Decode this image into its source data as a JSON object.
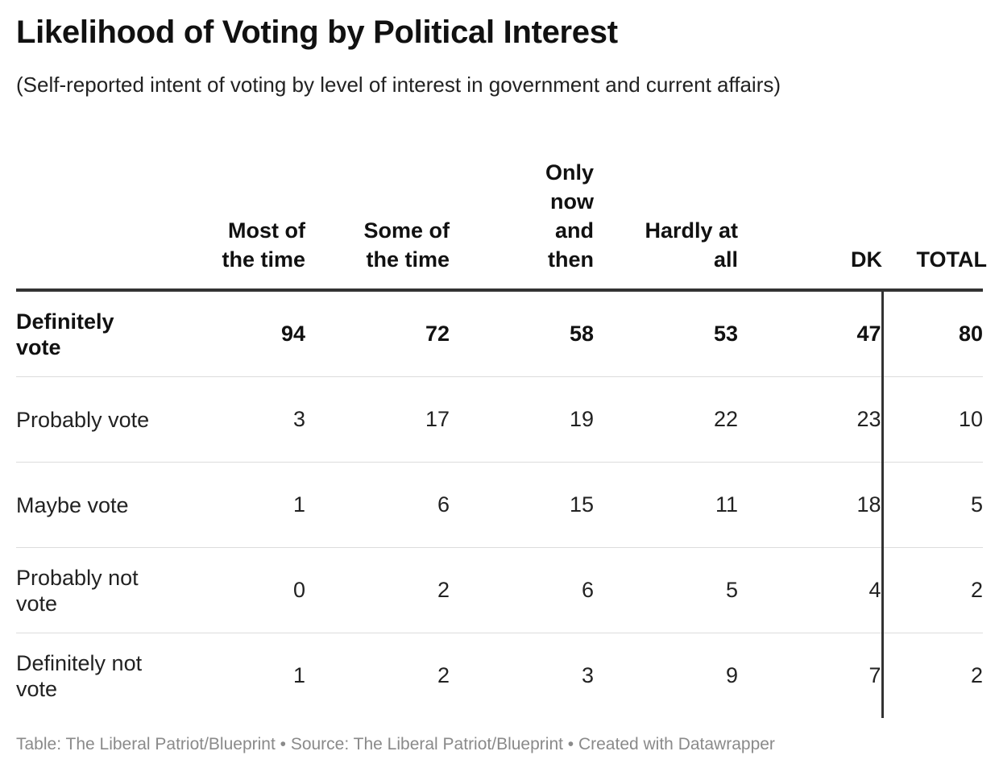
{
  "title": "Likelihood of Voting by Political Interest",
  "subtitle": "(Self-reported intent of voting by level of interest in government and current affairs)",
  "footer": "Table: The Liberal Patriot/Blueprint • Source: The Liberal Patriot/Blueprint • Created with Datawrapper",
  "colors": {
    "header_rule": "#333333",
    "row_divider": "#dcdcdc",
    "footer_text": "#8a8a8a"
  },
  "chart_data": {
    "type": "table",
    "title": "Likelihood of Voting by Political Interest",
    "subtitle": "(Self-reported intent of voting by level of interest in government and current affairs)",
    "columns": [
      "Most of the time",
      "Some of the time",
      "Only now and then",
      "Hardly at all",
      "DK",
      "TOTAL"
    ],
    "rows": [
      {
        "label": "Definitely vote",
        "values": [
          "94",
          "72",
          "58",
          "53",
          "47",
          "80"
        ]
      },
      {
        "label": "Probably vote",
        "values": [
          "3",
          "17",
          "19",
          "22",
          "23",
          "10"
        ]
      },
      {
        "label": "Maybe vote",
        "values": [
          "1",
          "6",
          "15",
          "11",
          "18",
          "5"
        ]
      },
      {
        "label": "Probably not vote",
        "values": [
          "0",
          "2",
          "6",
          "5",
          "4",
          "2"
        ]
      },
      {
        "label": "Definitely not vote",
        "values": [
          "1",
          "2",
          "3",
          "9",
          "7",
          "2"
        ]
      }
    ]
  }
}
